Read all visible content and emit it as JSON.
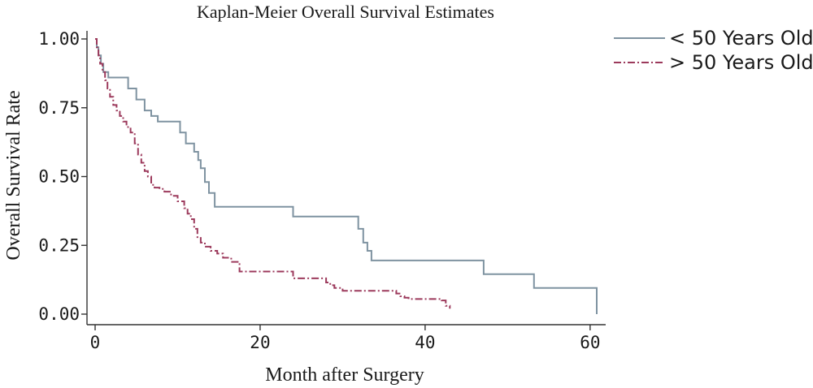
{
  "chart_data": {
    "type": "line",
    "step": true,
    "title": "Kaplan-Meier Overall Survival Estimates",
    "xlabel": "Month after Surgery",
    "ylabel": "Overall Survival Rate",
    "xlim": [
      0,
      61
    ],
    "ylim": [
      0,
      1
    ],
    "xticks": [
      0,
      20,
      40,
      60
    ],
    "xtick_labels": [
      "0",
      "20",
      "40",
      "60"
    ],
    "yticks": [
      0,
      0.25,
      0.5,
      0.75,
      1.0
    ],
    "ytick_labels": [
      "0.00",
      "0.25",
      "0.50",
      "0.75",
      "1.00"
    ],
    "grid": false,
    "legend_position": "top-right",
    "series": [
      {
        "name": "< 50 Years Old",
        "color": "#7f93a1",
        "dash": "solid",
        "x": [
          0,
          0.2,
          0.4,
          0.7,
          1.0,
          1.6,
          4.0,
          5.0,
          6.0,
          6.8,
          7.6,
          10.3,
          11.0,
          12.0,
          12.5,
          12.8,
          13.3,
          13.8,
          14.5,
          24.0,
          31.9,
          32.5,
          33.0,
          33.5,
          47.1,
          53.2,
          60.8
        ],
        "y": [
          1.0,
          0.97,
          0.94,
          0.91,
          0.88,
          0.86,
          0.82,
          0.78,
          0.74,
          0.72,
          0.7,
          0.66,
          0.62,
          0.59,
          0.56,
          0.53,
          0.48,
          0.44,
          0.39,
          0.355,
          0.31,
          0.26,
          0.23,
          0.195,
          0.145,
          0.095,
          0.0
        ]
      },
      {
        "name": "> 50 Years Old",
        "color": "#9c3a5c",
        "dash": "dashdot",
        "x": [
          0,
          0.2,
          0.4,
          0.6,
          0.9,
          1.2,
          1.5,
          1.8,
          2.2,
          2.6,
          3.0,
          3.4,
          3.8,
          4.3,
          4.8,
          5.2,
          5.6,
          6.0,
          6.4,
          6.8,
          7.2,
          7.8,
          8.4,
          9.2,
          10.0,
          10.8,
          11.2,
          11.6,
          12.0,
          12.4,
          12.8,
          13.3,
          14.0,
          14.8,
          15.5,
          16.5,
          17.5,
          19.0,
          22.0,
          24.0,
          25.0,
          27.0,
          28.0,
          28.5,
          29.0,
          30.0,
          36.5,
          37.0,
          37.5,
          38.0,
          42.0,
          42.5,
          43.0
        ],
        "y": [
          1.0,
          0.97,
          0.94,
          0.91,
          0.88,
          0.85,
          0.82,
          0.79,
          0.76,
          0.74,
          0.72,
          0.7,
          0.68,
          0.66,
          0.62,
          0.58,
          0.55,
          0.52,
          0.5,
          0.47,
          0.46,
          0.455,
          0.445,
          0.43,
          0.41,
          0.385,
          0.365,
          0.345,
          0.31,
          0.28,
          0.26,
          0.245,
          0.23,
          0.22,
          0.205,
          0.19,
          0.155,
          0.155,
          0.155,
          0.13,
          0.13,
          0.13,
          0.115,
          0.105,
          0.095,
          0.085,
          0.075,
          0.065,
          0.06,
          0.055,
          0.05,
          0.03,
          0.02
        ]
      }
    ]
  }
}
